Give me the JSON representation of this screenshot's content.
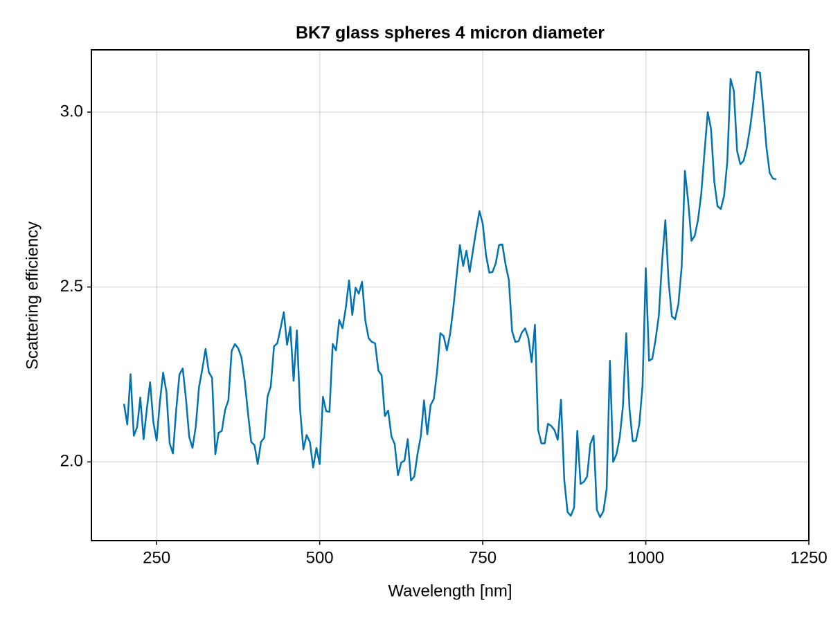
{
  "chart_data": {
    "type": "line",
    "title": "BK7 glass spheres 4 micron diameter",
    "x_label": "Wavelength [nm]",
    "y_label": "Scattering efficiency",
    "xlim": [
      150,
      1250
    ],
    "ylim": [
      1.775,
      3.178
    ],
    "xticks": [
      250,
      500,
      750,
      1000,
      1250
    ],
    "yticks": [
      {
        "value": 2,
        "label": "2.0"
      },
      2.5,
      {
        "value": 3,
        "label": "3.0"
      }
    ],
    "grid": true,
    "series": [
      {
        "color": "#0072b2",
        "x": [
          200,
          205,
          210,
          215,
          220,
          225,
          230,
          235,
          240,
          245,
          250,
          255,
          260,
          265,
          270,
          275,
          280,
          285,
          290,
          295,
          300,
          305,
          310,
          315,
          320,
          325,
          330,
          335,
          340,
          345,
          350,
          355,
          360,
          365,
          370,
          375,
          380,
          385,
          390,
          395,
          400,
          405,
          410,
          415,
          420,
          425,
          430,
          435,
          440,
          445,
          450,
          455,
          460,
          465,
          470,
          475,
          480,
          485,
          490,
          495,
          500,
          505,
          510,
          515,
          520,
          525,
          530,
          535,
          540,
          545,
          550,
          555,
          560,
          565,
          570,
          575,
          580,
          585,
          590,
          595,
          600,
          605,
          610,
          615,
          620,
          625,
          630,
          635,
          640,
          645,
          650,
          655,
          660,
          665,
          670,
          675,
          680,
          685,
          690,
          695,
          700,
          705,
          710,
          715,
          720,
          725,
          730,
          735,
          740,
          745,
          750,
          755,
          760,
          765,
          770,
          775,
          780,
          785,
          790,
          795,
          800,
          805,
          810,
          815,
          820,
          825,
          830,
          835,
          840,
          845,
          850,
          855,
          860,
          865,
          870,
          875,
          880,
          885,
          890,
          895,
          900,
          905,
          910,
          915,
          920,
          925,
          930,
          935,
          940,
          945,
          950,
          955,
          960,
          965,
          970,
          975,
          980,
          985,
          990,
          995,
          1000,
          1005,
          1010,
          1015,
          1020,
          1025,
          1030,
          1035,
          1040,
          1045,
          1050,
          1055,
          1060,
          1065,
          1070,
          1075,
          1080,
          1085,
          1090,
          1095,
          1100,
          1105,
          1110,
          1115,
          1120,
          1125,
          1130,
          1135,
          1140,
          1145,
          1150,
          1155,
          1160,
          1165,
          1170,
          1175,
          1180,
          1185,
          1190,
          1195,
          1200
        ],
        "values": [
          2.166,
          2.107,
          2.251,
          2.075,
          2.099,
          2.184,
          2.065,
          2.152,
          2.228,
          2.113,
          2.061,
          2.172,
          2.255,
          2.2,
          2.053,
          2.024,
          2.149,
          2.25,
          2.267,
          2.18,
          2.071,
          2.04,
          2.101,
          2.214,
          2.265,
          2.323,
          2.257,
          2.24,
          2.022,
          2.083,
          2.089,
          2.149,
          2.176,
          2.317,
          2.337,
          2.325,
          2.299,
          2.232,
          2.141,
          2.057,
          2.048,
          1.994,
          2.057,
          2.069,
          2.186,
          2.216,
          2.331,
          2.339,
          2.382,
          2.428,
          2.335,
          2.386,
          2.232,
          2.376,
          2.149,
          2.036,
          2.077,
          2.057,
          1.984,
          2.04,
          1.994,
          2.186,
          2.145,
          2.143,
          2.337,
          2.319,
          2.406,
          2.382,
          2.44,
          2.519,
          2.42,
          2.498,
          2.481,
          2.515,
          2.404,
          2.354,
          2.343,
          2.339,
          2.261,
          2.248,
          2.131,
          2.147,
          2.073,
          2.051,
          1.962,
          1.998,
          2.004,
          2.065,
          1.947,
          1.958,
          2.022,
          2.073,
          2.176,
          2.079,
          2.162,
          2.18,
          2.259,
          2.368,
          2.36,
          2.319,
          2.366,
          2.442,
          2.533,
          2.62,
          2.56,
          2.604,
          2.543,
          2.604,
          2.663,
          2.717,
          2.681,
          2.592,
          2.541,
          2.543,
          2.568,
          2.62,
          2.622,
          2.564,
          2.521,
          2.374,
          2.343,
          2.345,
          2.37,
          2.382,
          2.354,
          2.285,
          2.392,
          2.091,
          2.053,
          2.053,
          2.109,
          2.103,
          2.091,
          2.063,
          2.178,
          1.949,
          1.857,
          1.846,
          1.869,
          2.089,
          1.937,
          1.943,
          1.958,
          2.051,
          2.075,
          1.863,
          1.842,
          1.859,
          1.923,
          2.289,
          2.0,
          2.022,
          2.069,
          2.16,
          2.368,
          2.152,
          2.059,
          2.061,
          2.107,
          2.218,
          2.554,
          2.289,
          2.295,
          2.35,
          2.418,
          2.574,
          2.691,
          2.515,
          2.416,
          2.408,
          2.451,
          2.558,
          2.832,
          2.745,
          2.632,
          2.646,
          2.691,
          2.766,
          2.885,
          3.0,
          2.952,
          2.802,
          2.731,
          2.723,
          2.76,
          2.859,
          3.095,
          3.061,
          2.889,
          2.851,
          2.861,
          2.899,
          2.956,
          3.03,
          3.115,
          3.113,
          3.014,
          2.899,
          2.826,
          2.81,
          2.808
        ]
      }
    ]
  }
}
